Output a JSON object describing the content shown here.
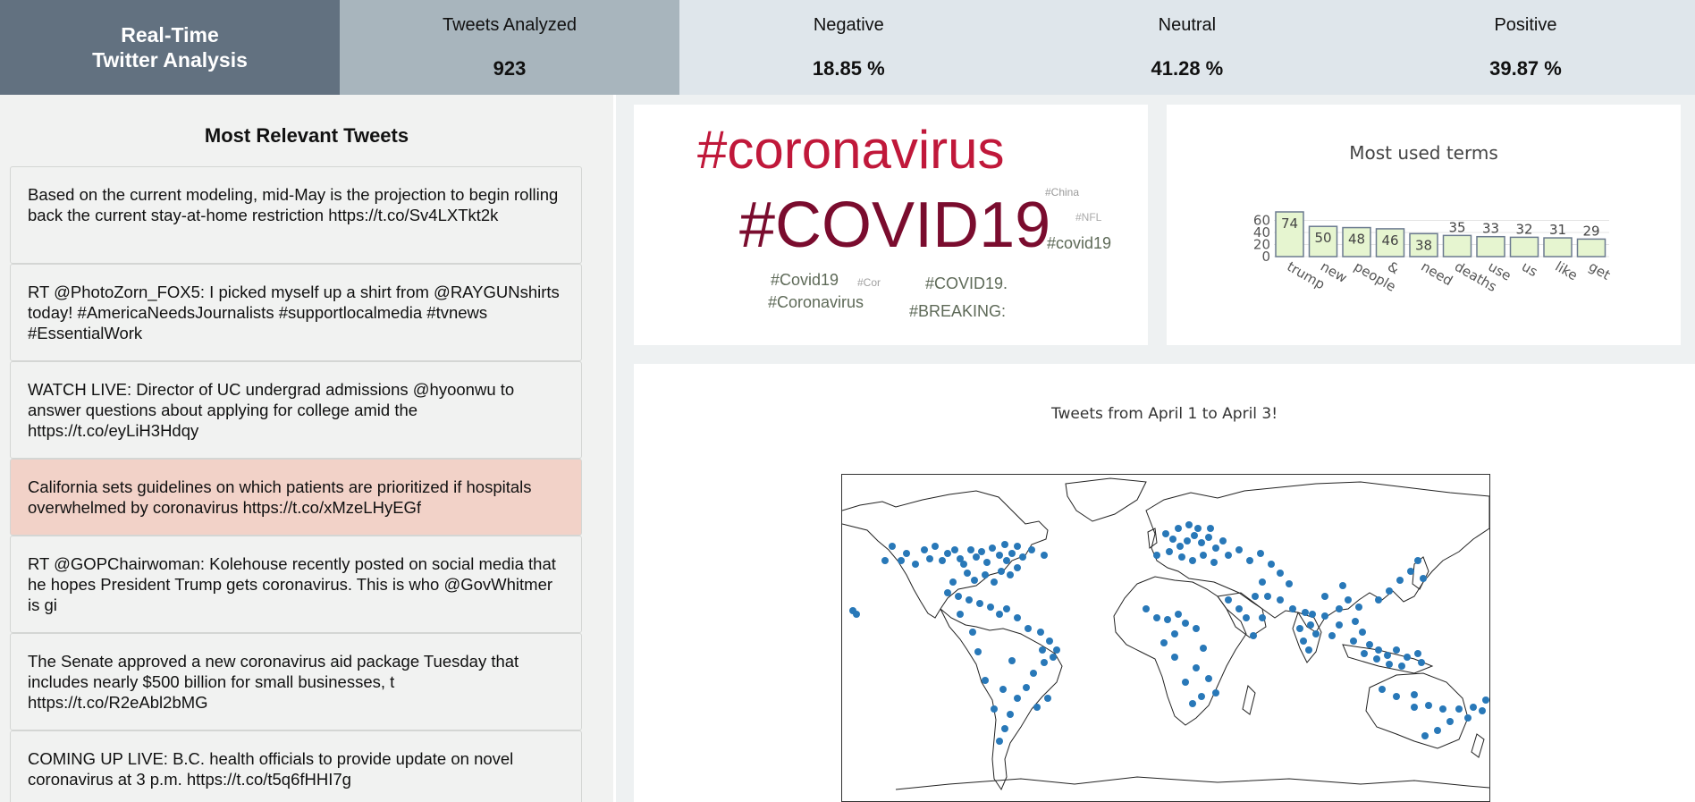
{
  "header": {
    "title_line1": "Real-Time",
    "title_line2": "Twitter Analysis",
    "stats": [
      {
        "label": "Tweets Analyzed",
        "value": "923"
      },
      {
        "label": "Negative",
        "value": "18.85 %"
      },
      {
        "label": "Neutral",
        "value": "41.28 %"
      },
      {
        "label": "Positive",
        "value": "39.87 %"
      }
    ]
  },
  "tweets_panel": {
    "title": "Most Relevant Tweets",
    "tweets": [
      "Based on the current modeling, mid-May is the projection to begin rolling back the current stay-at-home restriction https://t.co/Sv4LXTkt2k",
      "RT @PhotoZorn_FOX5: I picked myself up a shirt from @RAYGUNshirts today! #AmericaNeedsJournalists #supportlocalmedia #tvnews #EssentialWork",
      "WATCH LIVE: Director of UC undergrad admissions @hyoonwu to answer questions about applying for college amid the https://t.co/eyLiH3Hdqy",
      "California sets guidelines on which patients are prioritized if hospitals overwhelmed by coronavirus https://t.co/xMzeLHyEGf",
      "RT @GOPChairwoman: Kolehouse recently posted on social media that he hopes President Trump gets coronavirus. This is who @GovWhitmer is gi",
      "The Senate approved a new coronavirus aid package Tuesday that includes nearly $500 billion for small businesses, t https://t.co/R2eAbl2bMG",
      "COMING UP LIVE: B.C. health officials to provide update on novel coronavirus at 3 p.m. https://t.co/t5q6fHHI7g"
    ],
    "highlight_color": "#f2d2c8"
  },
  "wordcloud": {
    "words": [
      {
        "text": "#coronavirus",
        "color": "#c0183a"
      },
      {
        "text": "#COVID19",
        "color": "#7a0c2e"
      },
      {
        "text": "#China",
        "color": "#9a9a9a"
      },
      {
        "text": "#NFL",
        "color": "#aaaaaa"
      },
      {
        "text": "#covid19",
        "color": "#5e6a58"
      },
      {
        "text": "#Covid19",
        "color": "#5e6a58"
      },
      {
        "text": "#Cor",
        "color": "#a0a0a0"
      },
      {
        "text": "#COVID19.",
        "color": "#5e6a58"
      },
      {
        "text": "#Coronavirus",
        "color": "#5e6a58"
      },
      {
        "text": "#BREAKING:",
        "color": "#5e6a58"
      }
    ]
  },
  "chart_data": [
    {
      "type": "bar",
      "title": "Most used terms",
      "categories": [
        "trump",
        "new",
        "people",
        "&",
        "need",
        "deaths",
        "use",
        "us",
        "like",
        "get"
      ],
      "values": [
        74,
        50,
        48,
        46,
        38,
        35,
        33,
        32,
        31,
        29
      ],
      "ylim": [
        0,
        74
      ],
      "yticks": [
        "0",
        "20",
        "40",
        "60"
      ],
      "bar_fill": "#e6f5d0",
      "bar_stroke": "#6b7a8f"
    }
  ],
  "map": {
    "title": "Tweets from April 1 to April 3!",
    "point_color": "#2878b8"
  }
}
